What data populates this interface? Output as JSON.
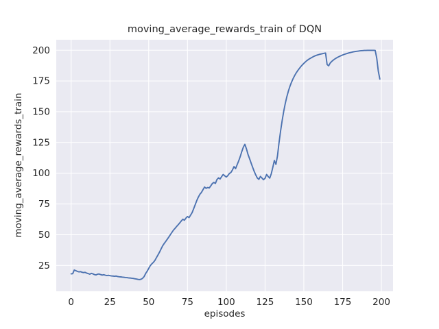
{
  "chart_data": {
    "type": "line",
    "title": "moving_average_rewards_train of DQN",
    "xlabel": "episodes",
    "ylabel": "moving_average_rewards_train",
    "x_ticks": [
      0,
      25,
      50,
      75,
      100,
      125,
      150,
      175,
      200
    ],
    "y_ticks": [
      25,
      50,
      75,
      100,
      125,
      150,
      175,
      200
    ],
    "xlim": [
      -9.6,
      207.5
    ],
    "ylim": [
      4.0,
      208.5
    ],
    "grid": true,
    "legend": "none",
    "style": "seaborn-darkgrid",
    "background_color": "#eaeaf2",
    "grid_color": "#ffffff",
    "line_color": "#4c72b0",
    "series": [
      {
        "name": "DQN moving average rewards (train)",
        "x_start": 0,
        "x_step": 1,
        "y": [
          18.2,
          18.3,
          21.3,
          20.8,
          20.2,
          19.8,
          20.0,
          19.5,
          19.2,
          19.4,
          18.8,
          18.4,
          17.9,
          18.6,
          18.2,
          17.6,
          17.3,
          17.9,
          18.1,
          17.6,
          17.2,
          17.5,
          17.1,
          16.8,
          17.0,
          16.7,
          16.5,
          16.4,
          16.2,
          16.4,
          16.0,
          15.8,
          15.7,
          15.5,
          15.4,
          15.2,
          15.1,
          14.9,
          14.8,
          14.6,
          14.5,
          14.2,
          14.0,
          13.7,
          13.5,
          13.8,
          14.5,
          15.9,
          18.4,
          20.3,
          22.6,
          24.8,
          26.3,
          27.5,
          29.1,
          31.4,
          33.6,
          35.9,
          38.5,
          41.0,
          42.9,
          44.6,
          46.4,
          48.2,
          50.1,
          52.0,
          53.8,
          55.2,
          56.7,
          58.1,
          59.6,
          61.2,
          62.6,
          61.8,
          63.5,
          64.8,
          63.9,
          65.9,
          68.0,
          71.2,
          74.5,
          77.8,
          80.6,
          82.9,
          84.4,
          86.6,
          88.8,
          87.7,
          88.4,
          88.0,
          89.7,
          91.6,
          92.5,
          91.7,
          94.9,
          96.2,
          95.3,
          97.2,
          99.0,
          97.9,
          96.9,
          98.1,
          99.8,
          100.6,
          102.7,
          105.4,
          103.7,
          106.9,
          110.0,
          113.5,
          117.6,
          121.2,
          123.5,
          119.8,
          115.3,
          111.9,
          108.3,
          104.8,
          101.5,
          98.6,
          96.1,
          95.0,
          97.4,
          96.1,
          94.7,
          95.9,
          99.0,
          97.3,
          96.0,
          99.5,
          104.8,
          110.4,
          107.2,
          114.0,
          124.8,
          134.2,
          142.6,
          150.1,
          156.5,
          162.0,
          166.6,
          170.5,
          173.8,
          176.7,
          179.2,
          181.4,
          183.3,
          185.0,
          186.6,
          188.0,
          189.3,
          190.5,
          191.6,
          192.5,
          193.3,
          194.0,
          194.7,
          195.3,
          195.8,
          196.2,
          196.6,
          196.9,
          197.2,
          197.5,
          197.7,
          188.4,
          187.3,
          189.6,
          190.9,
          192.0,
          192.9,
          193.7,
          194.4,
          195.0,
          195.6,
          196.1,
          196.6,
          197.0,
          197.4,
          197.8,
          198.1,
          198.4,
          198.7,
          198.9,
          199.1,
          199.3,
          199.5,
          199.6,
          199.7,
          199.8,
          199.8,
          199.9,
          199.9,
          199.9,
          199.9,
          199.9,
          199.8,
          193.5,
          183.0,
          176.5
        ]
      }
    ]
  }
}
